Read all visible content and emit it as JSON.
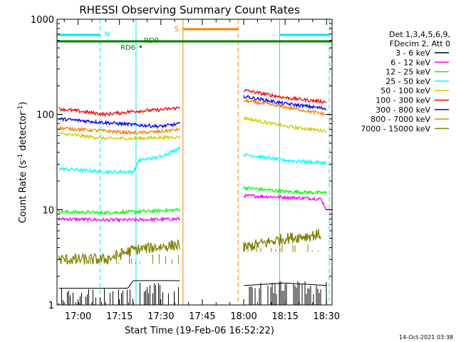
{
  "chart_data": {
    "type": "line",
    "title": "RHESSI Observing Summary Count Rates",
    "xlabel": "Start Time (19-Feb-06 16:52:22)",
    "ylabel": "Count Rate (s-1 detector-1)",
    "ylabel_parts": [
      "Count Rate (s",
      "-1",
      " detector",
      "-1",
      ")"
    ],
    "yscale": "log",
    "ylim": [
      1,
      1000
    ],
    "xlim": [
      "16:52:22",
      "18:32:00"
    ],
    "x_ticks": [
      "17:00",
      "17:15",
      "17:30",
      "17:45",
      "18:00",
      "18:15",
      "18:30"
    ],
    "y_ticks": [
      "1",
      "10",
      "100",
      "1000"
    ],
    "legend_header": [
      "Det 1,3,4,5,6,9,",
      "FDecim 2, Att 0"
    ],
    "legend_position": "right",
    "timestamp": "14-Oct-2021 03:38",
    "flags": {
      "night": {
        "label": "N",
        "color": "#00e5ff",
        "intervals": [
          [
            "16:52:22",
            "17:08:00"
          ],
          [
            "18:13:00",
            "18:31:00"
          ]
        ]
      },
      "saa": {
        "label": "S",
        "color": "#ff8000",
        "intervals": [
          [
            "17:38:00",
            "17:58:00"
          ]
        ]
      },
      "rd0": {
        "label": "RD0",
        "color": "#008000"
      },
      "rd6": {
        "label": "RD6",
        "color": "#008000"
      }
    },
    "boundaries": {
      "cyan_dashed": [
        "17:08:00",
        "18:31:00"
      ],
      "cyan_solid": [
        "17:21:00",
        "18:13:00"
      ],
      "orange_solid": [
        "17:38:00"
      ],
      "orange_dashed": [
        "17:58:00"
      ]
    },
    "series": [
      {
        "name": "3 - 6 keV",
        "color": "#000000",
        "segments": [
          [
            [
              "16:53",
              1.5
            ],
            [
              "17:10",
              1.5
            ],
            [
              "17:18",
              1.5
            ],
            [
              "17:20",
              1.8
            ],
            [
              "17:37",
              1.8
            ]
          ],
          [
            [
              "18:00",
              1.6
            ],
            [
              "18:15",
              1.7
            ],
            [
              "18:30",
              1.6
            ]
          ]
        ]
      },
      {
        "name": "6 - 12 keV",
        "color": "#ff00ff",
        "segments": [
          [
            [
              "16:53",
              8
            ],
            [
              "17:10",
              7.8
            ],
            [
              "17:20",
              7.8
            ],
            [
              "17:37",
              8
            ]
          ],
          [
            [
              "18:00",
              14
            ],
            [
              "18:15",
              13.5
            ],
            [
              "18:28",
              13
            ],
            [
              "18:30",
              10
            ]
          ]
        ]
      },
      {
        "name": "12 - 25 keV",
        "color": "#00ff00",
        "segments": [
          [
            [
              "16:53",
              9.5
            ],
            [
              "17:10",
              9.3
            ],
            [
              "17:20",
              9.5
            ],
            [
              "17:37",
              10
            ]
          ],
          [
            [
              "18:00",
              17
            ],
            [
              "18:15",
              15.5
            ],
            [
              "18:30",
              15
            ]
          ]
        ]
      },
      {
        "name": "25 - 50 keV",
        "color": "#00ffff",
        "segments": [
          [
            [
              "16:53",
              27
            ],
            [
              "17:10",
              25
            ],
            [
              "17:20",
              25
            ],
            [
              "17:22",
              33
            ],
            [
              "17:30",
              36
            ],
            [
              "17:37",
              45
            ]
          ],
          [
            [
              "18:00",
              38
            ],
            [
              "18:15",
              33
            ],
            [
              "18:30",
              31
            ]
          ]
        ]
      },
      {
        "name": "50 - 100 keV",
        "color": "#cccc00",
        "segments": [
          [
            [
              "16:53",
              63
            ],
            [
              "17:10",
              56
            ],
            [
              "17:20",
              56
            ],
            [
              "17:37",
              58
            ]
          ],
          [
            [
              "18:00",
              92
            ],
            [
              "18:15",
              75
            ],
            [
              "18:30",
              67
            ]
          ]
        ]
      },
      {
        "name": "100 - 300 keV",
        "color": "#ff0000",
        "segments": [
          [
            [
              "16:53",
              115
            ],
            [
              "17:10",
              100
            ],
            [
              "17:20",
              108
            ],
            [
              "17:30",
              112
            ],
            [
              "17:37",
              118
            ]
          ],
          [
            [
              "18:00",
              180
            ],
            [
              "18:15",
              150
            ],
            [
              "18:30",
              135
            ]
          ]
        ]
      },
      {
        "name": "300 - 800 keV",
        "color": "#0000ff",
        "segments": [
          [
            [
              "16:53",
              90
            ],
            [
              "17:10",
              82
            ],
            [
              "17:20",
              78
            ],
            [
              "17:30",
              75
            ],
            [
              "17:37",
              80
            ]
          ],
          [
            [
              "18:00",
              155
            ],
            [
              "18:15",
              130
            ],
            [
              "18:30",
              115
            ]
          ]
        ]
      },
      {
        "name": "800 - 7000 keV",
        "color": "#ff8000",
        "segments": [
          [
            [
              "16:53",
              72
            ],
            [
              "17:10",
              67
            ],
            [
              "17:20",
              64
            ],
            [
              "17:30",
              66
            ],
            [
              "17:37",
              70
            ]
          ],
          [
            [
              "18:00",
              140
            ],
            [
              "18:15",
              120
            ],
            [
              "18:30",
              100
            ]
          ]
        ]
      },
      {
        "name": "7000 - 15000 keV",
        "color": "#808000",
        "segments": [
          [
            [
              "16:53",
              3
            ],
            [
              "17:10",
              3
            ],
            [
              "17:20",
              3.8
            ],
            [
              "17:37",
              4.3
            ]
          ],
          [
            [
              "18:00",
              4
            ],
            [
              "18:15",
              5
            ],
            [
              "18:28",
              5.5
            ]
          ]
        ]
      }
    ]
  }
}
